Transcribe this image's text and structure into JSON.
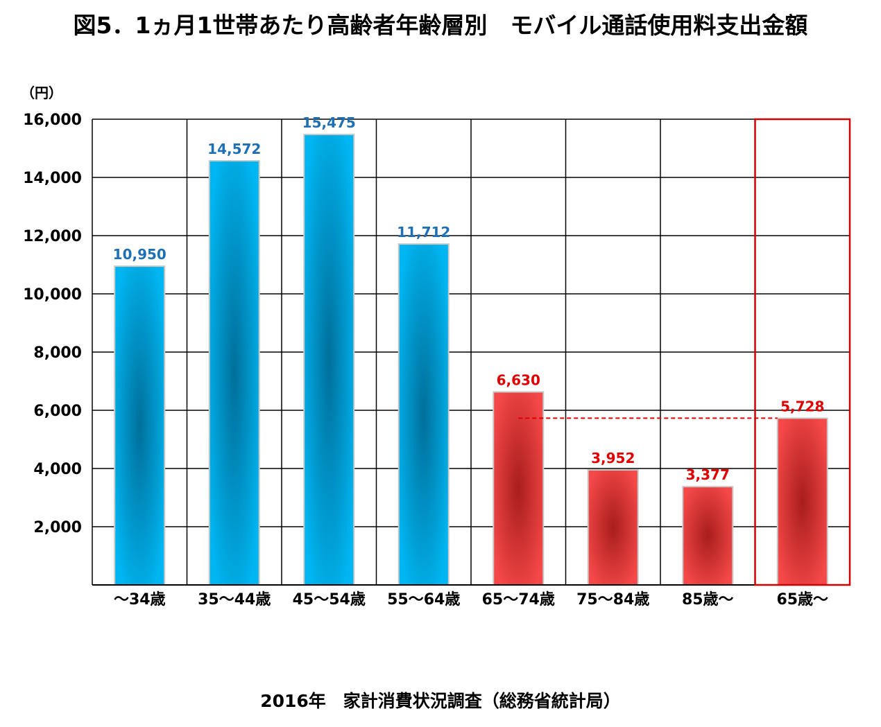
{
  "title": "図5．1ヵ月1世帯あたり高齢者年齢層別　モバイル通話使用料支出金額",
  "source": "2016年　家計消費状況調査（総務省統計局）",
  "colors": {
    "blue": "#00b6f2",
    "blue_dark": "#006f9a",
    "red": "#f54848",
    "red_dark": "#a91d1d",
    "blue_label": "#1f6fb4",
    "red_label": "#e00000",
    "grid": "#000000",
    "highlight_box": "#d00000",
    "reference_line": "#e00000"
  },
  "chart_data": {
    "type": "bar",
    "unit_label": "（円）",
    "ylim": [
      0,
      16000
    ],
    "yticks": [
      2000,
      4000,
      6000,
      8000,
      10000,
      12000,
      14000,
      16000
    ],
    "ytick_labels": [
      "2,000",
      "4,000",
      "6,000",
      "8,000",
      "10,000",
      "12,000",
      "14,000",
      "16,000"
    ],
    "categories": [
      "～34歳",
      "35～44歳",
      "45～54歳",
      "55～64歳",
      "65～74歳",
      "75～84歳",
      "85歳～",
      "65歳～"
    ],
    "values": [
      10950,
      14572,
      15475,
      11712,
      6630,
      3952,
      3377,
      5728
    ],
    "value_labels": [
      "10,950",
      "14,572",
      "15,475",
      "11,712",
      "6,630",
      "3,952",
      "3,377",
      "5,728"
    ],
    "bar_colors": [
      "blue",
      "blue",
      "blue",
      "blue",
      "red",
      "red",
      "red",
      "red"
    ],
    "highlighted_category": "65歳～",
    "reference_line_value": 5728,
    "grid": true
  }
}
